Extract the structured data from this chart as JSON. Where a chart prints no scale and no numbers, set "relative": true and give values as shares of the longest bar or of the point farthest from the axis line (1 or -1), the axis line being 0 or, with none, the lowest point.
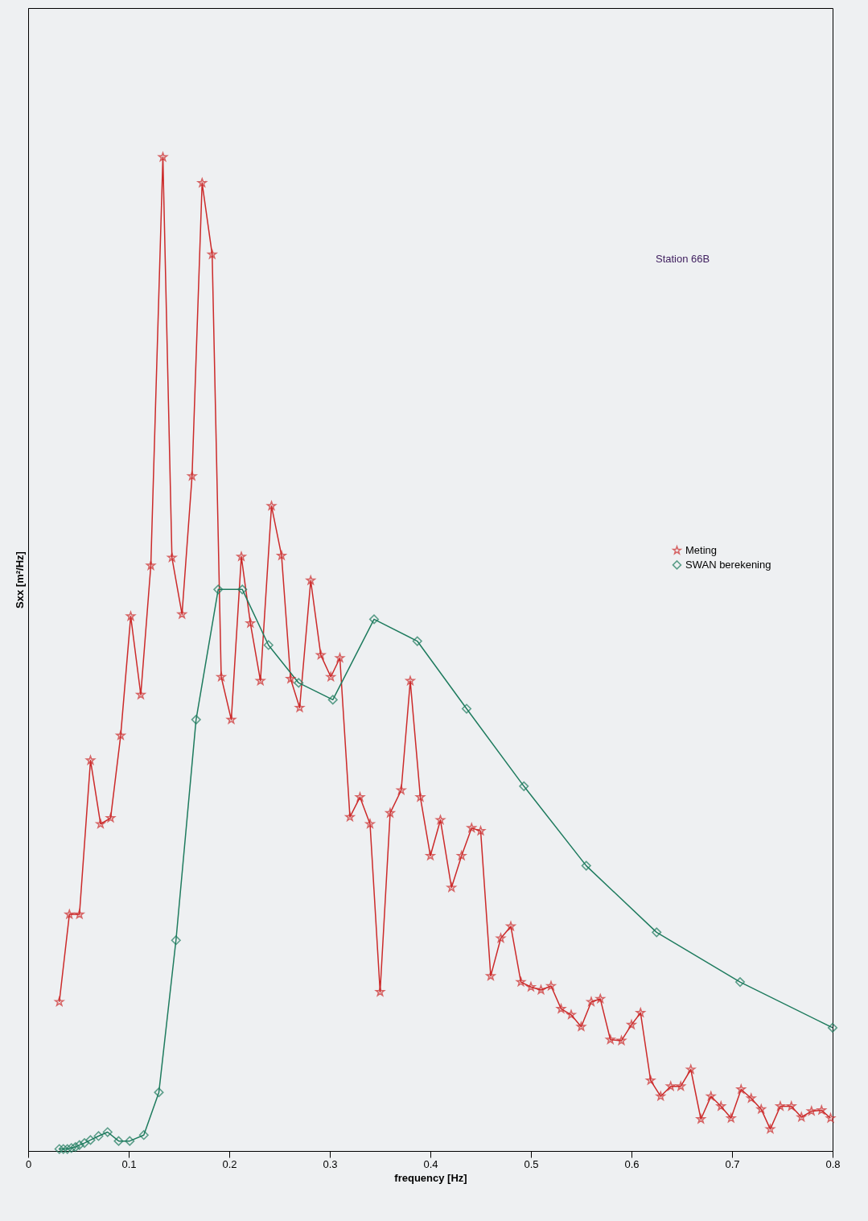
{
  "chart_data": {
    "type": "line",
    "relative": true,
    "xlabel": "frequency [Hz]",
    "ylabel": "Sxx [m²/Hz]",
    "annotations": [
      "Station 66B"
    ],
    "xlim": [
      0,
      0.8
    ],
    "xticks": [
      0,
      0.1,
      0.2,
      0.3,
      0.4,
      0.5,
      0.6,
      0.7,
      0.8
    ],
    "grid": false,
    "legend": "right",
    "series": [
      {
        "name": "Meting",
        "color": "#cc2a2a",
        "marker": "star",
        "x": [
          0.031,
          0.041,
          0.051,
          0.062,
          0.072,
          0.082,
          0.092,
          0.102,
          0.112,
          0.122,
          0.134,
          0.143,
          0.153,
          0.163,
          0.173,
          0.183,
          0.192,
          0.202,
          0.212,
          0.221,
          0.231,
          0.242,
          0.252,
          0.261,
          0.27,
          0.281,
          0.291,
          0.301,
          0.31,
          0.32,
          0.33,
          0.34,
          0.35,
          0.36,
          0.371,
          0.38,
          0.39,
          0.4,
          0.41,
          0.421,
          0.431,
          0.441,
          0.45,
          0.46,
          0.47,
          0.48,
          0.49,
          0.5,
          0.51,
          0.52,
          0.53,
          0.54,
          0.55,
          0.56,
          0.569,
          0.579,
          0.59,
          0.6,
          0.609,
          0.619,
          0.629,
          0.639,
          0.649,
          0.659,
          0.669,
          0.679,
          0.689,
          0.699,
          0.709,
          0.719,
          0.729,
          0.738,
          0.748,
          0.759,
          0.769,
          0.779,
          0.789,
          0.798
        ],
        "values": [
          0.15,
          0.238,
          0.238,
          0.393,
          0.329,
          0.335,
          0.418,
          0.538,
          0.459,
          0.589,
          1.0,
          0.597,
          0.54,
          0.679,
          0.974,
          0.902,
          0.477,
          0.434,
          0.598,
          0.531,
          0.473,
          0.649,
          0.599,
          0.475,
          0.446,
          0.574,
          0.499,
          0.477,
          0.496,
          0.336,
          0.356,
          0.329,
          0.16,
          0.34,
          0.363,
          0.473,
          0.356,
          0.297,
          0.333,
          0.265,
          0.297,
          0.325,
          0.322,
          0.176,
          0.214,
          0.226,
          0.17,
          0.165,
          0.162,
          0.166,
          0.143,
          0.137,
          0.125,
          0.15,
          0.153,
          0.112,
          0.111,
          0.127,
          0.139,
          0.071,
          0.055,
          0.065,
          0.065,
          0.082,
          0.032,
          0.055,
          0.045,
          0.033,
          0.062,
          0.053,
          0.042,
          0.022,
          0.045,
          0.045,
          0.034,
          0.04,
          0.041,
          0.033
        ]
      },
      {
        "name": "SWAN berekening",
        "color": "#1e7b5e",
        "marker": "diamond",
        "x": [
          0.031,
          0.035,
          0.039,
          0.043,
          0.047,
          0.051,
          0.056,
          0.062,
          0.07,
          0.079,
          0.09,
          0.101,
          0.115,
          0.13,
          0.147,
          0.167,
          0.189,
          0.213,
          0.239,
          0.269,
          0.303,
          0.344,
          0.387,
          0.436,
          0.493,
          0.555,
          0.625,
          0.708,
          0.8
        ],
        "values": [
          0.002,
          0.002,
          0.002,
          0.003,
          0.004,
          0.006,
          0.008,
          0.011,
          0.015,
          0.019,
          0.01,
          0.01,
          0.016,
          0.059,
          0.212,
          0.434,
          0.565,
          0.565,
          0.509,
          0.471,
          0.454,
          0.535,
          0.513,
          0.445,
          0.367,
          0.287,
          0.22,
          0.17,
          0.124
        ]
      }
    ]
  }
}
